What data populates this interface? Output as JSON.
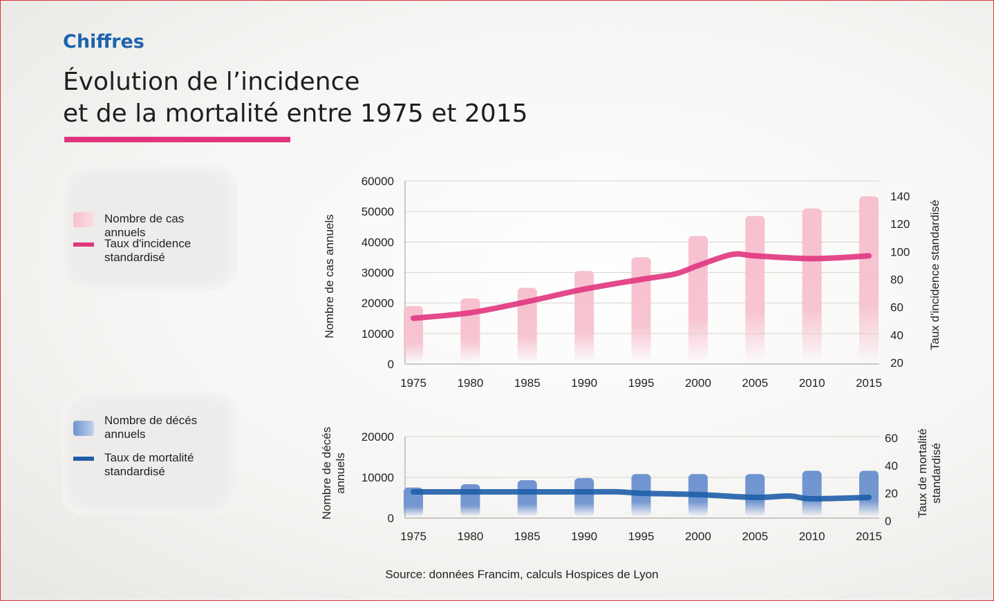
{
  "header": {
    "kicker": "Chiffres",
    "title_line1": "Évolution de l’incidence",
    "title_line2": "et de la mortalité entre 1975 et 2015"
  },
  "legend_incidence": {
    "bars_label": "Nombre de cas annuels",
    "line_label": "Taux d'incidence standardisé"
  },
  "legend_mortality": {
    "bars_label": "Nombre de décés annuels",
    "line_label": "Taux de mortalité standardisé"
  },
  "source": "Source: données Francim, calculs Hospices de Lyon",
  "colors": {
    "incidence_line": "#e0357e",
    "incidence_bar": "#f7c1cf",
    "mortality_line": "#1e5ea8",
    "mortality_bar": "#6e93cf",
    "accent": "#1f63ad"
  },
  "chart_data": [
    {
      "type": "bar",
      "categories": [
        "1975",
        "1980",
        "1985",
        "1990",
        "1995",
        "2000",
        "2005",
        "2010",
        "2015"
      ],
      "series": [
        {
          "name": "Nombre de cas annuels",
          "axis": "left",
          "values": [
            19000,
            21500,
            25000,
            30500,
            35000,
            42000,
            48500,
            51000,
            55000
          ]
        }
      ],
      "line": {
        "name": "Taux d'incidence standardisé",
        "axis": "right",
        "x": [
          1975,
          1980,
          1985,
          1990,
          1995,
          1998,
          2000,
          2003,
          2005,
          2010,
          2015
        ],
        "y": [
          52,
          56,
          64,
          73,
          80,
          84,
          90,
          98,
          97,
          95,
          97
        ]
      },
      "ylabel": "Nombre de cas annuels",
      "y2label": "Taux d'incidence standardisé",
      "ylim": [
        0,
        60000
      ],
      "yticks": [
        0,
        10000,
        20000,
        30000,
        40000,
        50000,
        60000
      ],
      "y2lim": [
        20,
        140
      ],
      "y2ticks": [
        20,
        40,
        60,
        80,
        100,
        120,
        140
      ],
      "grid": true
    },
    {
      "type": "bar",
      "categories": [
        "1975",
        "1980",
        "1985",
        "1990",
        "1995",
        "2000",
        "2005",
        "2010",
        "2015"
      ],
      "series": [
        {
          "name": "Nombre de décés annuels",
          "axis": "left",
          "values": [
            7500,
            8300,
            9300,
            9800,
            10800,
            10800,
            10800,
            11600,
            11600
          ]
        }
      ],
      "line": {
        "name": "Taux de mortalité standardisé",
        "axis": "right",
        "x": [
          1975,
          1980,
          1985,
          1990,
          1993,
          1995,
          2000,
          2005,
          2008,
          2010,
          2015
        ],
        "y": [
          21,
          21,
          21,
          21,
          21,
          20,
          19,
          17,
          18,
          16,
          17
        ]
      },
      "ylabel": "Nombre de décés annuels",
      "y2label": "Taux de mortalité standardisé",
      "ylim": [
        0,
        20000
      ],
      "yticks": [
        0,
        10000,
        20000
      ],
      "y2lim": [
        0,
        60
      ],
      "y2ticks": [
        0,
        20,
        40,
        60
      ],
      "grid": true
    }
  ]
}
